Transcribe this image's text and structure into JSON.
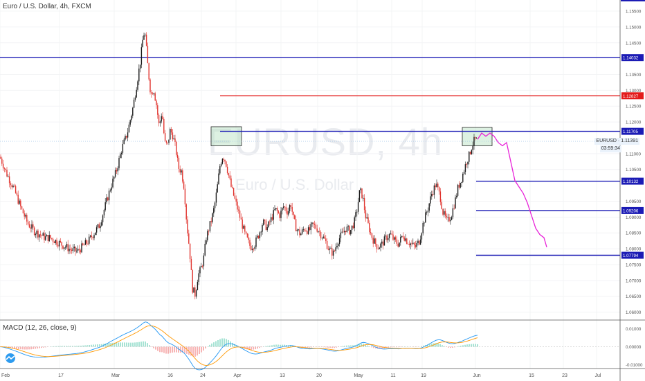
{
  "header": {
    "title": "Euro / U.S. Dollar, 4h, FXCM",
    "watermark_symbol": "EURUSD, 4h",
    "watermark_name": "Euro / U.S. Dollar"
  },
  "macd_panel": {
    "title": "MACD (12, 26, close, 9)",
    "y_ticks": [
      "0.01000",
      "0.00000",
      "-0.01000"
    ]
  },
  "current_price": {
    "label": "EURUSD",
    "value": "1.11391",
    "countdown": "03:59:34"
  },
  "colors": {
    "up": "#1a1a1a",
    "down": "#e0332d",
    "level_line": "#1b1bb5",
    "resistance_red": "#e31b1b",
    "projection": "#e822d8",
    "macd": "#2196f3",
    "signal": "#ff9800",
    "hist_pos": "#4ec7a8",
    "hist_neg": "#ef6b6b"
  },
  "chart_data": {
    "type": "candlestick",
    "symbol": "EURUSD",
    "timeframe": "4h",
    "x_tick_labels": [
      "Feb",
      "17",
      "Mar",
      "16",
      "24",
      "Apr",
      "13",
      "20",
      "May",
      "11",
      "19",
      "Jun",
      "15",
      "23",
      "Jul"
    ],
    "y_tick_labels": [
      "1.15500",
      "1.15000",
      "1.14500",
      "1.13500",
      "1.13000",
      "1.12500",
      "1.12000",
      "1.11000",
      "1.10500",
      "1.09500",
      "1.09000",
      "1.08500",
      "1.08000",
      "1.07500",
      "1.07000",
      "1.06500",
      "1.06000"
    ],
    "ylim": [
      1.0575,
      1.1585
    ],
    "price_path": [
      [
        0,
        1.109
      ],
      [
        10,
        1.1035
      ],
      [
        20,
        1.099
      ],
      [
        30,
        1.093
      ],
      [
        40,
        1.088
      ],
      [
        50,
        1.0855
      ],
      [
        58,
        1.0845
      ],
      [
        65,
        1.0835
      ],
      [
        72,
        1.0835
      ],
      [
        80,
        1.0825
      ],
      [
        88,
        1.0815
      ],
      [
        96,
        1.0805
      ],
      [
        104,
        1.0795
      ],
      [
        112,
        1.0792
      ],
      [
        120,
        1.0808
      ],
      [
        128,
        1.0825
      ],
      [
        136,
        1.085
      ],
      [
        144,
        1.0875
      ],
      [
        152,
        1.0935
      ],
      [
        160,
        1.0995
      ],
      [
        168,
        1.1045
      ],
      [
        176,
        1.1115
      ],
      [
        184,
        1.1165
      ],
      [
        192,
        1.1245
      ],
      [
        198,
        1.1325
      ],
      [
        203,
        1.1395
      ],
      [
        206,
        1.1455
      ],
      [
        209,
        1.149
      ],
      [
        211,
        1.1445
      ],
      [
        214,
        1.1365
      ],
      [
        218,
        1.1285
      ],
      [
        222,
        1.1305
      ],
      [
        226,
        1.1255
      ],
      [
        230,
        1.1185
      ],
      [
        234,
        1.1235
      ],
      [
        238,
        1.1135
      ],
      [
        242,
        1.1125
      ],
      [
        246,
        1.1175
      ],
      [
        250,
        1.1155
      ],
      [
        254,
        1.1115
      ],
      [
        258,
        1.1055
      ],
      [
        262,
        1.1045
      ],
      [
        266,
        1.0995
      ],
      [
        270,
        1.0875
      ],
      [
        274,
        1.0795
      ],
      [
        278,
        1.0675
      ],
      [
        282,
        1.0655
      ],
      [
        286,
        1.0715
      ],
      [
        290,
        1.0735
      ],
      [
        294,
        1.0765
      ],
      [
        298,
        1.0835
      ],
      [
        302,
        1.0865
      ],
      [
        306,
        1.0895
      ],
      [
        310,
        1.0935
      ],
      [
        314,
        1.0995
      ],
      [
        318,
        1.1065
      ],
      [
        322,
        1.1095
      ],
      [
        326,
        1.1075
      ],
      [
        330,
        1.1035
      ],
      [
        334,
        1.0995
      ],
      [
        338,
        1.0965
      ],
      [
        342,
        1.0935
      ],
      [
        346,
        1.0905
      ],
      [
        350,
        1.0875
      ],
      [
        354,
        1.0845
      ],
      [
        358,
        1.0825
      ],
      [
        362,
        1.0805
      ],
      [
        368,
        1.0815
      ],
      [
        374,
        1.0845
      ],
      [
        380,
        1.0885
      ],
      [
        386,
        1.0865
      ],
      [
        392,
        1.0895
      ],
      [
        398,
        1.0925
      ],
      [
        404,
        1.0905
      ],
      [
        410,
        1.0935
      ],
      [
        416,
        1.0915
      ],
      [
        420,
        1.0945
      ],
      [
        424,
        1.0895
      ],
      [
        428,
        1.0865
      ],
      [
        434,
        1.0845
      ],
      [
        440,
        1.0865
      ],
      [
        446,
        1.0855
      ],
      [
        452,
        1.0875
      ],
      [
        458,
        1.0865
      ],
      [
        464,
        1.0845
      ],
      [
        470,
        1.0825
      ],
      [
        476,
        1.0795
      ],
      [
        482,
        1.0785
      ],
      [
        488,
        1.0825
      ],
      [
        494,
        1.0845
      ],
      [
        500,
        1.0865
      ],
      [
        506,
        1.0855
      ],
      [
        512,
        1.0885
      ],
      [
        516,
        1.0925
      ],
      [
        520,
        1.0985
      ],
      [
        524,
        1.0965
      ],
      [
        528,
        1.0905
      ],
      [
        532,
        1.0875
      ],
      [
        536,
        1.0845
      ],
      [
        540,
        1.0825
      ],
      [
        546,
        1.0805
      ],
      [
        552,
        1.0815
      ],
      [
        558,
        1.0835
      ],
      [
        564,
        1.0845
      ],
      [
        570,
        1.0825
      ],
      [
        576,
        1.0815
      ],
      [
        582,
        1.0845
      ],
      [
        588,
        1.0825
      ],
      [
        594,
        1.0815
      ],
      [
        600,
        1.0805
      ],
      [
        606,
        1.0825
      ],
      [
        612,
        1.0885
      ],
      [
        618,
        1.0925
      ],
      [
        624,
        1.0975
      ],
      [
        630,
        1.1005
      ],
      [
        636,
        1.0965
      ],
      [
        640,
        1.0915
      ],
      [
        646,
        1.0885
      ],
      [
        652,
        1.0905
      ],
      [
        658,
        1.0955
      ],
      [
        662,
        1.0995
      ],
      [
        666,
        1.1015
      ],
      [
        670,
        1.1045
      ],
      [
        674,
        1.1075
      ],
      [
        678,
        1.1095
      ],
      [
        682,
        1.1125
      ],
      [
        686,
        1.1145
      ],
      [
        690,
        1.1139
      ]
    ],
    "horizontal_levels": [
      {
        "label": "1.14032",
        "value": 1.14032,
        "color": "#1b1bb5",
        "full_width": true
      },
      {
        "label": "1.12827",
        "value": 1.12827,
        "color": "#e31b1b",
        "full_width": false
      },
      {
        "label": "1.11705",
        "value": 1.11705,
        "color": "#1b1bb5",
        "full_width": false
      },
      {
        "label": "1.10132",
        "value": 1.10132,
        "color": "#1b1bb5",
        "full_width": false
      },
      {
        "label": "1.09206",
        "value": 1.09206,
        "color": "#1b1bb5",
        "full_width": false
      },
      {
        "label": "1.07794",
        "value": 1.07794,
        "color": "#1b1bb5",
        "full_width": false
      }
    ],
    "rectangles": [
      {
        "t0": 305,
        "t1": 349,
        "y0": 1.1125,
        "y1": 1.1185
      },
      {
        "t0": 668,
        "t1": 711,
        "y0": 1.1125,
        "y1": 1.1183
      }
    ],
    "projection_path": [
      [
        690,
        1.1145
      ],
      [
        696,
        1.1165
      ],
      [
        702,
        1.1155
      ],
      [
        708,
        1.1165
      ],
      [
        714,
        1.1155
      ],
      [
        720,
        1.1135
      ],
      [
        726,
        1.1125
      ],
      [
        732,
        1.1135
      ],
      [
        736,
        1.1095
      ],
      [
        740,
        1.1055
      ],
      [
        744,
        1.1015
      ],
      [
        750,
        1.0995
      ],
      [
        756,
        1.0975
      ],
      [
        762,
        1.0945
      ],
      [
        768,
        1.0905
      ],
      [
        774,
        1.0865
      ],
      [
        780,
        1.0845
      ],
      [
        786,
        1.0835
      ],
      [
        790,
        1.0805
      ]
    ]
  }
}
